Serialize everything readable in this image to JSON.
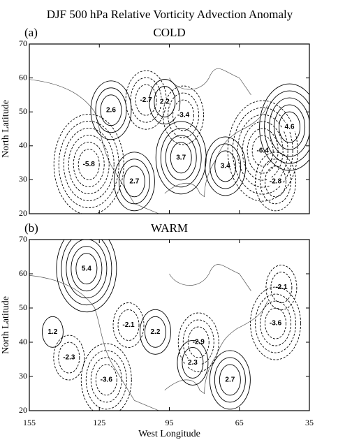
{
  "title": "DJF 500 hPa Relative Vorticity Advection Anomaly",
  "chart_data": [
    {
      "type": "contour",
      "panel_label": "(a)",
      "title": "COLD",
      "ylabel": "North Latitude",
      "xlim": [
        155,
        35
      ],
      "ylim": [
        20,
        70
      ],
      "xticks": [
        155,
        125,
        95,
        65,
        35
      ],
      "yticks": [
        20,
        30,
        40,
        50,
        60,
        70
      ],
      "contour_labels": [
        {
          "x": 120,
          "y": 50.5,
          "value": 2.6
        },
        {
          "x": 105,
          "y": 53.5,
          "value": -2.7
        },
        {
          "x": 97,
          "y": 53,
          "value": 2.2
        },
        {
          "x": 89,
          "y": 49,
          "value": -3.4
        },
        {
          "x": 129.5,
          "y": 34.5,
          "value": -5.8
        },
        {
          "x": 90,
          "y": 36.5,
          "value": 3.7
        },
        {
          "x": 110,
          "y": 29.5,
          "value": 2.7
        },
        {
          "x": 71,
          "y": 34,
          "value": 3.4
        },
        {
          "x": 55,
          "y": 38.5,
          "value": -6.4
        },
        {
          "x": 49.5,
          "y": 29.5,
          "value": -2.8
        },
        {
          "x": 43.5,
          "y": 45.5,
          "value": 4.6
        }
      ]
    },
    {
      "type": "contour",
      "panel_label": "(b)",
      "title": "WARM",
      "ylabel": "North Latitude",
      "xlabel": "West Longitude",
      "xlim": [
        155,
        35
      ],
      "ylim": [
        20,
        70
      ],
      "xticks": [
        155,
        125,
        95,
        65,
        35
      ],
      "yticks": [
        20,
        30,
        40,
        50,
        60,
        70
      ],
      "contour_labels": [
        {
          "x": 130.5,
          "y": 61.5,
          "value": 5.4
        },
        {
          "x": 47,
          "y": 56,
          "value": -2.1
        },
        {
          "x": 145,
          "y": 43,
          "value": 1.2
        },
        {
          "x": 112.5,
          "y": 45,
          "value": -2.1
        },
        {
          "x": 101,
          "y": 43,
          "value": 2.2
        },
        {
          "x": 82.5,
          "y": 40,
          "value": -2.9
        },
        {
          "x": 49.5,
          "y": 45.5,
          "value": -3.6
        },
        {
          "x": 138,
          "y": 35.5,
          "value": -2.3
        },
        {
          "x": 85,
          "y": 34,
          "value": 2.3
        },
        {
          "x": 69,
          "y": 29,
          "value": 2.7
        },
        {
          "x": 122,
          "y": 29,
          "value": -3.6
        }
      ]
    }
  ]
}
